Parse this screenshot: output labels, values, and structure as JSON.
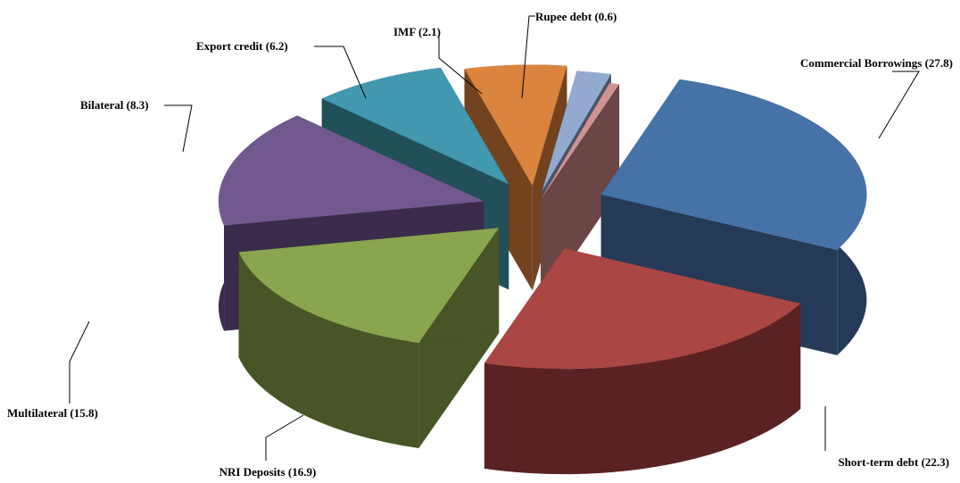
{
  "chart_data": {
    "type": "pie",
    "style": "3d-exploded",
    "title": "",
    "slices": [
      {
        "label": "Commercial Borrowings (27.8)",
        "value": 27.8,
        "color": "#4572A7",
        "side": "#243A57"
      },
      {
        "label": "Short-term debt (22.3)",
        "value": 22.3,
        "color": "#AA4643",
        "side": "#5A2222"
      },
      {
        "label": "NRI Deposits (16.9)",
        "value": 16.9,
        "color": "#89A54E",
        "side": "#485527"
      },
      {
        "label": "Multilateral (15.8)",
        "value": 15.8,
        "color": "#71588F",
        "side": "#3A2C4A"
      },
      {
        "label": "Bilateral (8.3)",
        "value": 8.3,
        "color": "#4198AF",
        "side": "#225059"
      },
      {
        "label": "Export credit (6.2)",
        "value": 6.2,
        "color": "#DB843D",
        "side": "#73431F"
      },
      {
        "label": "IMF (2.1)",
        "value": 2.1,
        "color": "#93A9CF",
        "side": "#4A5568"
      },
      {
        "label": "Rupee debt (0.6)",
        "value": 0.6,
        "color": "#D19392",
        "side": "#6B4646"
      }
    ]
  }
}
